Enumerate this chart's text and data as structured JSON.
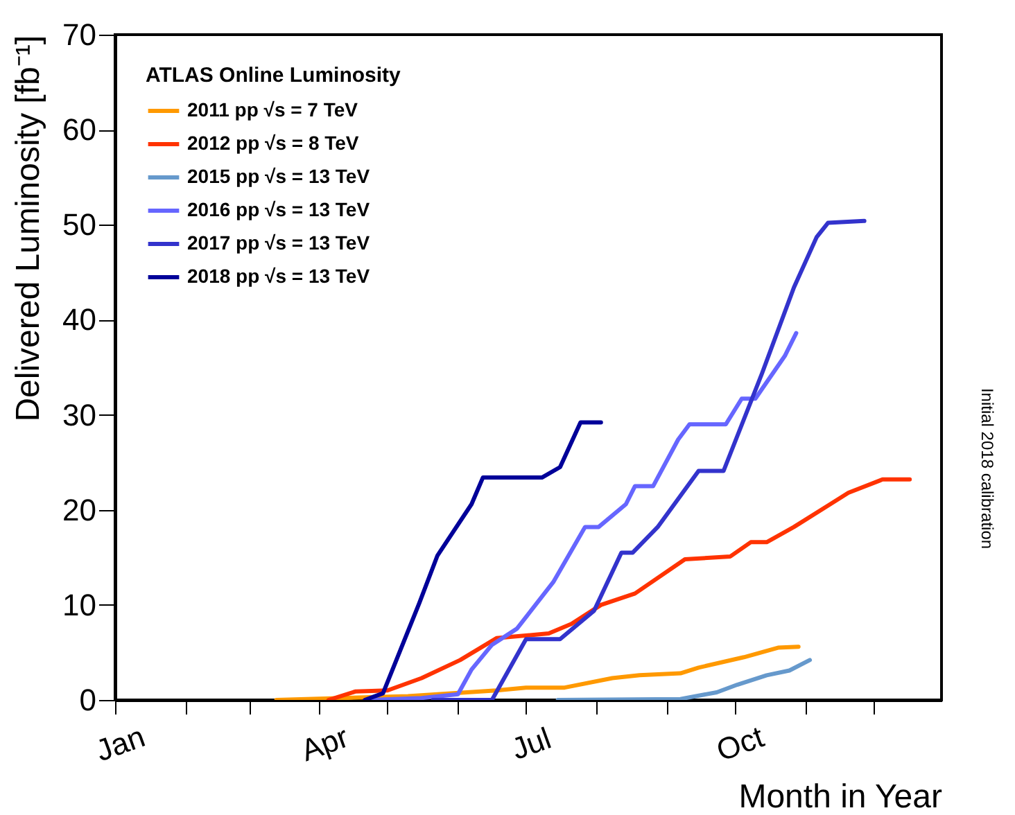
{
  "chart_data": {
    "type": "line",
    "xlabel": "Month in Year",
    "ylabel": "Delivered Luminosity [fb⁻¹]",
    "legend_title": "ATLAS Online Luminosity",
    "legend": "top left",
    "xlim": [
      "--01-01",
      "--12-31"
    ],
    "xticks": [
      {
        "value": "--01-01",
        "label": "Jan"
      },
      {
        "value": "--02-01",
        "label": null
      },
      {
        "value": "--03-01",
        "label": null
      },
      {
        "value": "--04-01",
        "label": "Apr"
      },
      {
        "value": "--05-01",
        "label": null
      },
      {
        "value": "--06-01",
        "label": null
      },
      {
        "value": "--07-01",
        "label": "Jul"
      },
      {
        "value": "--08-01",
        "label": null
      },
      {
        "value": "--09-01",
        "label": null
      },
      {
        "value": "--10-01",
        "label": "Oct"
      },
      {
        "value": "--11-01",
        "label": null
      },
      {
        "value": "--12-01",
        "label": null
      }
    ],
    "ylim": [
      0,
      70
    ],
    "yticks": [
      0,
      10,
      20,
      30,
      40,
      50,
      60,
      70
    ],
    "annotations": [
      "Initial 2018 calibration"
    ],
    "series": [
      {
        "name": "2011 pp   √s = 7 TeV",
        "color": "#ff9900",
        "x": [
          "--03-13",
          "--05-10",
          "--06-18",
          "--07-01",
          "--07-18",
          "--08-08",
          "--08-20",
          "--09-07",
          "--09-15",
          "--10-05",
          "--10-20",
          "--10-29"
        ],
        "values": [
          0,
          0.4,
          1.0,
          1.3,
          1.3,
          2.3,
          2.6,
          2.8,
          3.4,
          4.5,
          5.5,
          5.6
        ]
      },
      {
        "name": "2012 pp   √s = 8 TeV",
        "color": "#ff3300",
        "x": [
          "--04-05",
          "--04-17",
          "--05-01",
          "--05-16",
          "--06-02",
          "--06-18",
          "--07-11",
          "--07-21",
          "--08-03",
          "--08-18",
          "--09-09",
          "--09-29",
          "--10-08",
          "--10-15",
          "--10-27",
          "--11-12",
          "--11-20",
          "--12-05",
          "--12-17"
        ],
        "values": [
          0,
          0.9,
          1.0,
          2.3,
          4.2,
          6.5,
          7.0,
          8.0,
          10.0,
          11.2,
          14.8,
          15.1,
          16.6,
          16.6,
          18.2,
          20.6,
          21.8,
          23.2,
          23.2
        ]
      },
      {
        "name": "2015 pp   √s = 13 TeV",
        "color": "#6699cc",
        "x": [
          "--07-15",
          "--09-07",
          "--09-23",
          "--10-02",
          "--10-15",
          "--10-25",
          "--11-03"
        ],
        "values": [
          0,
          0.1,
          0.8,
          1.6,
          2.6,
          3.1,
          4.2
        ]
      },
      {
        "name": "2016 pp   √s = 13 TeV",
        "color": "#6666ff",
        "x": [
          "--04-23",
          "--05-16",
          "--06-01",
          "--06-07",
          "--06-16",
          "--06-27",
          "--07-13",
          "--07-27",
          "--08-02",
          "--08-14",
          "--08-18",
          "--08-26",
          "--09-06",
          "--09-11",
          "--09-27",
          "--10-04",
          "--10-10",
          "--10-23",
          "--10-28"
        ],
        "values": [
          0,
          0.2,
          0.6,
          3.2,
          5.8,
          7.5,
          12.4,
          18.2,
          18.2,
          20.6,
          22.5,
          22.5,
          27.4,
          29.0,
          29.0,
          31.7,
          31.7,
          36.2,
          38.6
        ]
      },
      {
        "name": "2017 pp   √s = 13 TeV",
        "color": "#3333cc",
        "x": [
          "--05-21",
          "--06-16",
          "--07-01",
          "--07-16",
          "--07-31",
          "--08-12",
          "--08-17",
          "--08-28",
          "--09-15",
          "--09-26",
          "--10-13",
          "--10-27",
          "--11-06",
          "--11-11",
          "--11-27"
        ],
        "values": [
          0,
          0,
          6.4,
          6.4,
          9.4,
          15.5,
          15.5,
          18.2,
          24.1,
          24.1,
          34.4,
          43.4,
          48.7,
          50.2,
          50.4
        ]
      },
      {
        "name": "2018 pp   √s = 13 TeV",
        "color": "#000099",
        "x": [
          "--04-21",
          "--04-29",
          "--05-15",
          "--05-23",
          "--06-07",
          "--06-12",
          "--07-08",
          "--07-16",
          "--07-25",
          "--08-03"
        ],
        "values": [
          0,
          0.7,
          10.2,
          15.2,
          20.6,
          23.4,
          23.4,
          24.5,
          29.2,
          29.2
        ]
      }
    ]
  }
}
